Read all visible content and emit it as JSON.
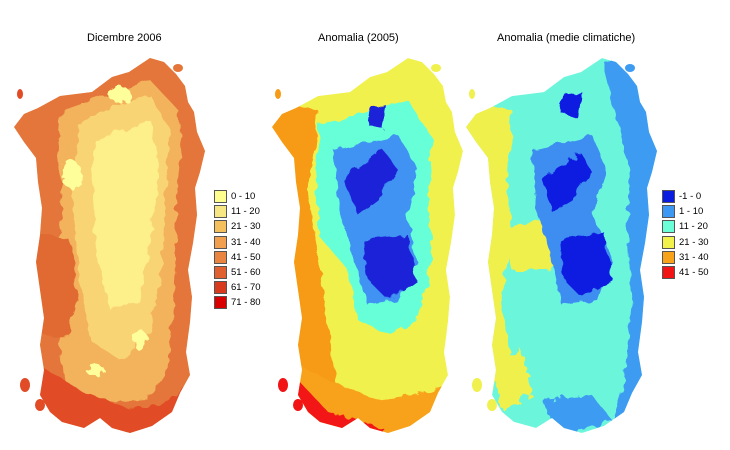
{
  "panels": [
    {
      "title": "Dicembre 2006",
      "legend": [
        {
          "label": "0 - 10",
          "color": "#fefe8e"
        },
        {
          "label": "11 - 20",
          "color": "#f7e784"
        },
        {
          "label": "21 - 30",
          "color": "#f4c05e"
        },
        {
          "label": "31 - 40",
          "color": "#f0a04e"
        },
        {
          "label": "41 - 50",
          "color": "#e98540"
        },
        {
          "label": "51 - 60",
          "color": "#e06030"
        },
        {
          "label": "61 - 70",
          "color": "#d83a1e"
        },
        {
          "label": "71 - 80",
          "color": "#d90000"
        }
      ],
      "colors": {
        "base": "#f3b25c",
        "coast": "#e4763a",
        "west": "#e06a30",
        "high": "#fdf08a",
        "highmid": "#f8d474",
        "southwest": "#e14c26",
        "spots": "#fefe9a"
      }
    },
    {
      "title": "Anomalia (2005)",
      "legend": [],
      "colors": {
        "base": "#f1f14e",
        "coast": "#f8a21a",
        "west": "#f79a14",
        "blueLight": "#66ffd8",
        "blueMid": "#3f93f2",
        "blueDark": "#1b22d8",
        "southwest": "#f21414"
      }
    },
    {
      "title": "Anomalia (medie climatiche)",
      "legend": [
        {
          "label": "-1 - 0",
          "color": "#0a1ce0"
        },
        {
          "label": "1 - 10",
          "color": "#3c98f2"
        },
        {
          "label": "11 - 20",
          "color": "#6bffd8"
        },
        {
          "label": "21 - 30",
          "color": "#f2f24c"
        },
        {
          "label": "31 - 40",
          "color": "#f8a21a"
        },
        {
          "label": "41 - 50",
          "color": "#f21414"
        }
      ],
      "colors": {
        "base": "#6bf6dc",
        "coast": "#3d9bf1",
        "west": "#f0f04e",
        "blueMid": "#3c8ef0",
        "blueDark": "#101ae0"
      }
    }
  ]
}
